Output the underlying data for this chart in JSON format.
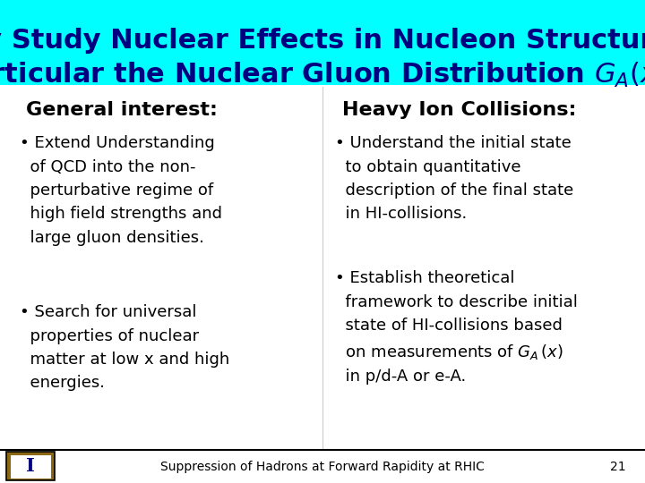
{
  "title_line1": "Why Study Nuclear Effects in Nucleon Structure in",
  "title_line2": "Particular the Nuclear Gluon Distribution $G_A(x)$ ?",
  "title_bg": "#00FFFF",
  "title_color": "#000080",
  "body_bg": "#FFFFFF",
  "col1_header": "General interest:",
  "col2_header": "Heavy Ion Collisions:",
  "footer_text": "Suppression of Hadrons at Forward Rapidity at RHIC",
  "footer_page": "21",
  "header_font_size": 22,
  "col_header_font_size": 16,
  "bullet_font_size": 13,
  "footer_font_size": 10
}
